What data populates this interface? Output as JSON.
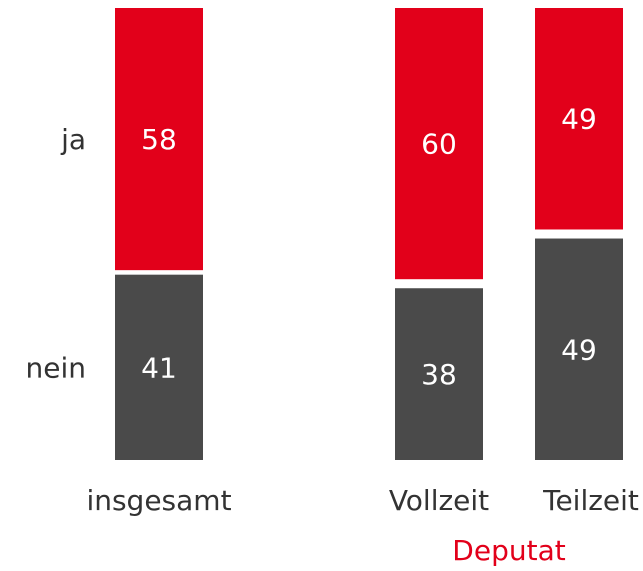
{
  "chart_data": {
    "type": "stacked-bar",
    "categories": [
      "insgesamt",
      "Vollzeit",
      "Teilzeit"
    ],
    "group_label": "Deputat",
    "series": [
      {
        "name": "nein",
        "color": "#4a4a4a",
        "values": [
          41,
          38,
          49
        ]
      },
      {
        "name": "ja",
        "color": "#e2001a",
        "values": [
          58,
          60,
          49
        ]
      }
    ],
    "ylim": [
      0,
      100
    ]
  }
}
